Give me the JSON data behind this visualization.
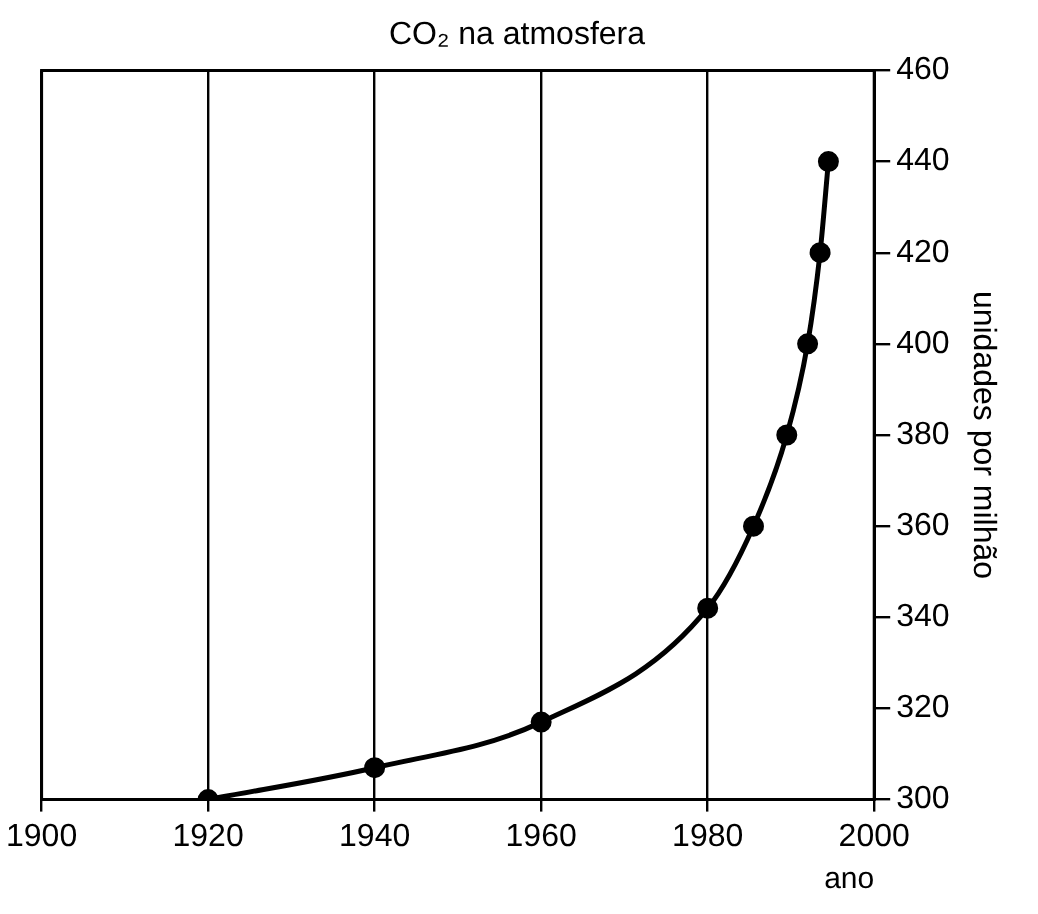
{
  "chart_data": {
    "type": "line",
    "title": "CO₂ na atmosfera",
    "xlabel": "ano",
    "ylabel": "unidades por milhão",
    "x": [
      1920,
      1940,
      1960,
      1980,
      1985.5,
      1989.5,
      1992,
      1993.5,
      1994.5
    ],
    "series": [
      {
        "color": "#000000",
        "values": [
          300,
          307,
          317,
          342,
          360,
          380,
          400,
          420,
          440
        ]
      }
    ],
    "xlim": [
      1900,
      2000
    ],
    "xticks": [
      1900,
      1920,
      1940,
      1960,
      1980,
      2000
    ],
    "ylim": [
      300,
      460
    ],
    "yticks": [
      300,
      320,
      340,
      360,
      380,
      400,
      420,
      440,
      460
    ],
    "grid": "x",
    "marker": "circle",
    "legend": false
  }
}
